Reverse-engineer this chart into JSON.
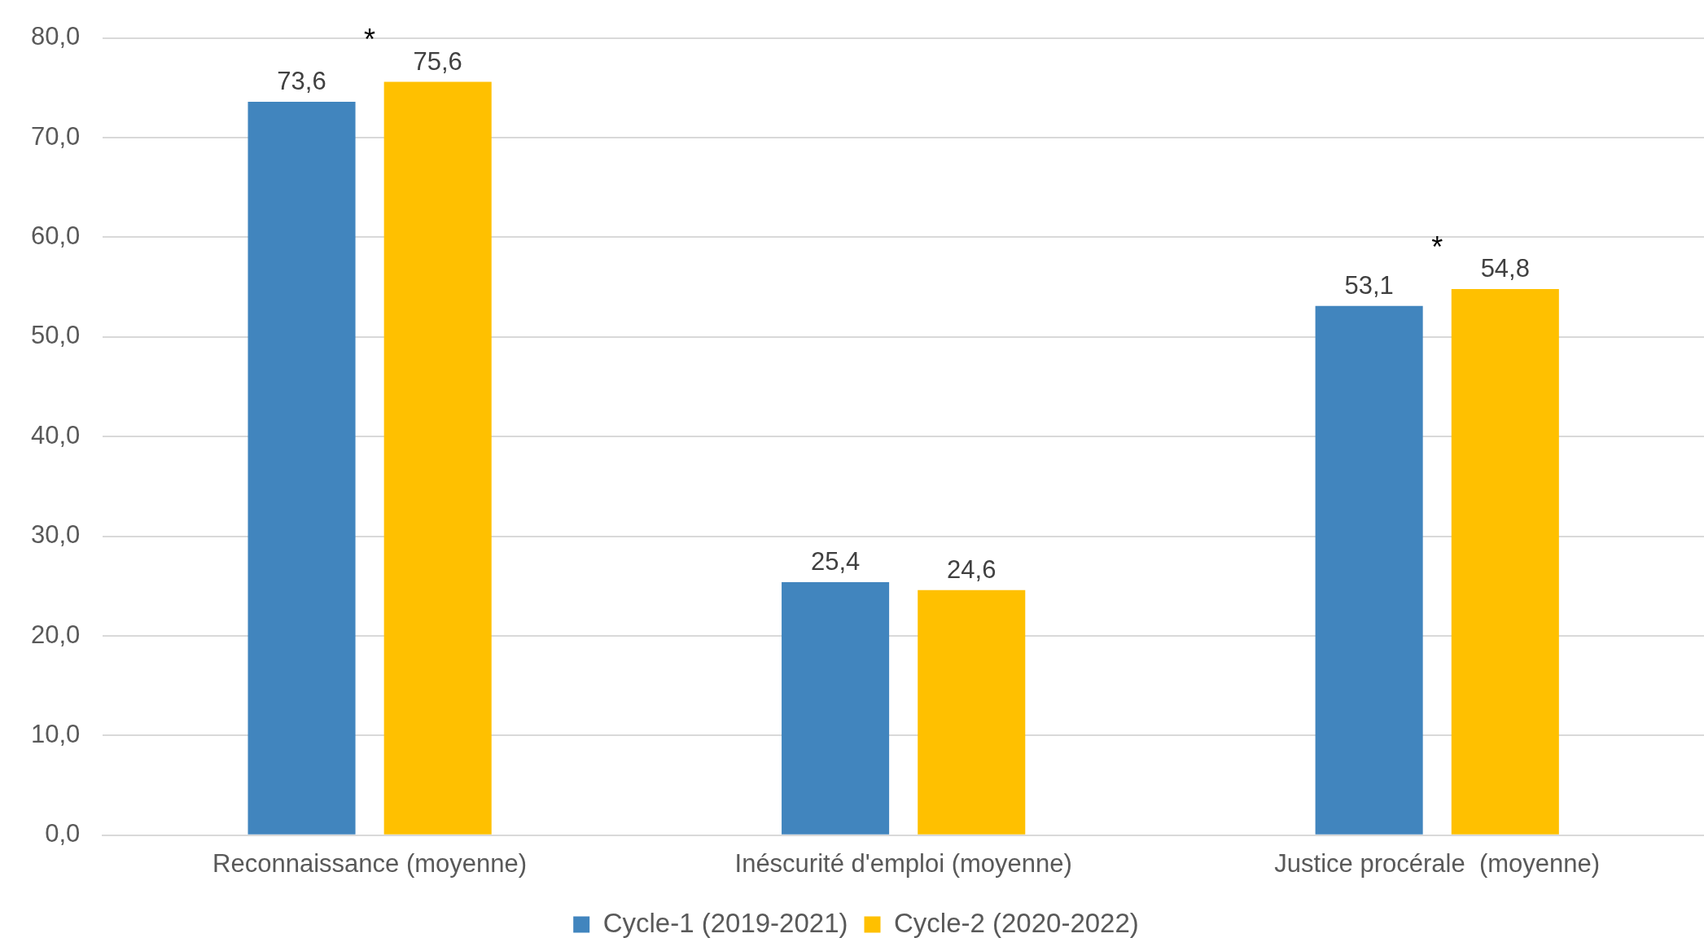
{
  "chart_data": {
    "type": "bar",
    "categories": [
      "Reconnaissance (moyenne)",
      "Inéscurité d'emploi (moyenne)",
      "Justice procérale  (moyenne)"
    ],
    "series": [
      {
        "name": "Cycle-1 (2019-2021)",
        "color": "#4185be",
        "values": [
          73.6,
          25.4,
          53.1
        ],
        "value_labels": [
          "73,6",
          "25,4",
          "53,1"
        ]
      },
      {
        "name": "Cycle-2 (2020-2022)",
        "color": "#ffc000",
        "values": [
          75.6,
          24.6,
          54.8
        ],
        "value_labels": [
          "75,6",
          "24,6",
          "54,8"
        ]
      }
    ],
    "ylim": [
      0,
      80
    ],
    "yticks": [
      {
        "value": 0,
        "label": "0,0"
      },
      {
        "value": 10,
        "label": "10,0"
      },
      {
        "value": 20,
        "label": "20,0"
      },
      {
        "value": 30,
        "label": "30,0"
      },
      {
        "value": 40,
        "label": "40,0"
      },
      {
        "value": 50,
        "label": "50,0"
      },
      {
        "value": 60,
        "label": "60,0"
      },
      {
        "value": 70,
        "label": "70,0"
      },
      {
        "value": 80,
        "label": "80,0"
      }
    ],
    "grid": "y",
    "legend": "bottom",
    "annotations": [
      "*",
      null,
      "*"
    ]
  }
}
